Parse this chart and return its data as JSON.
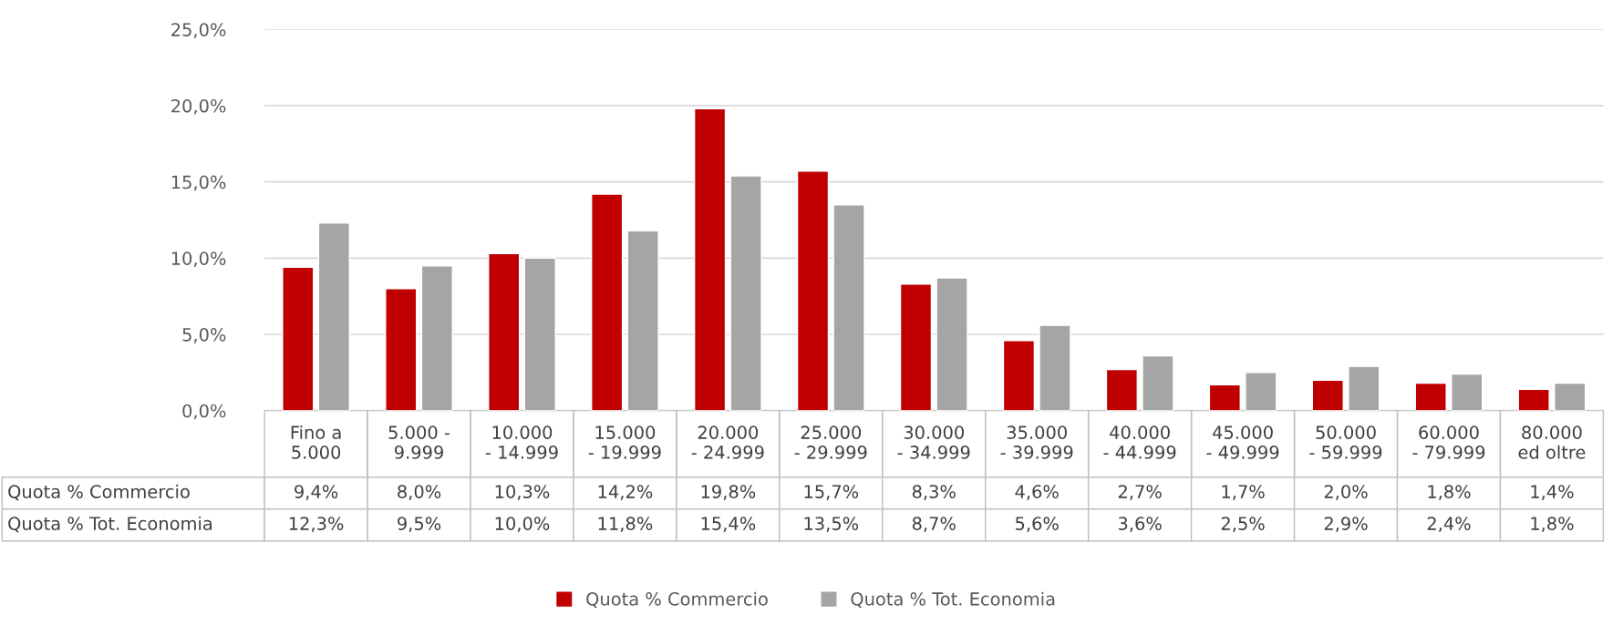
{
  "chart_data": {
    "type": "bar",
    "categories": [
      "Fino a\n5.000",
      "5.000 -\n9.999",
      "10.000\n- 14.999",
      "15.000\n- 19.999",
      "20.000\n- 24.999",
      "25.000\n- 29.999",
      "30.000\n- 34.999",
      "35.000\n- 39.999",
      "40.000\n- 44.999",
      "45.000\n- 49.999",
      "50.000\n- 59.999",
      "60.000\n- 79.999",
      "80.000\ned oltre"
    ],
    "series": [
      {
        "name": "Quota % Commercio",
        "color": "#c00000",
        "values": [
          9.4,
          8.0,
          10.3,
          14.2,
          19.8,
          15.7,
          8.3,
          4.6,
          2.7,
          1.7,
          2.0,
          1.8,
          1.4
        ],
        "value_labels": [
          "9,4%",
          "8,0%",
          "10,3%",
          "14,2%",
          "19,8%",
          "15,7%",
          "8,3%",
          "4,6%",
          "2,7%",
          "1,7%",
          "2,0%",
          "1,8%",
          "1,4%"
        ]
      },
      {
        "name": "Quota % Tot. Economia",
        "color": "#a5a5a5",
        "values": [
          12.3,
          9.5,
          10.0,
          11.8,
          15.4,
          13.5,
          8.7,
          5.6,
          3.6,
          2.5,
          2.9,
          2.4,
          1.8
        ],
        "value_labels": [
          "12,3%",
          "9,5%",
          "10,0%",
          "11,8%",
          "15,4%",
          "13,5%",
          "8,7%",
          "5,6%",
          "3,6%",
          "2,5%",
          "2,9%",
          "2,4%",
          "1,8%"
        ]
      }
    ],
    "ylim": [
      0,
      25
    ],
    "yticks": [
      {
        "value": 0,
        "label": "0,0%"
      },
      {
        "value": 5,
        "label": "5,0%"
      },
      {
        "value": 10,
        "label": "10,0%"
      },
      {
        "value": 15,
        "label": "15,0%"
      },
      {
        "value": 20,
        "label": "20,0%"
      },
      {
        "value": 25,
        "label": "25,0%"
      }
    ],
    "grid": "y",
    "legend": "bottom"
  }
}
